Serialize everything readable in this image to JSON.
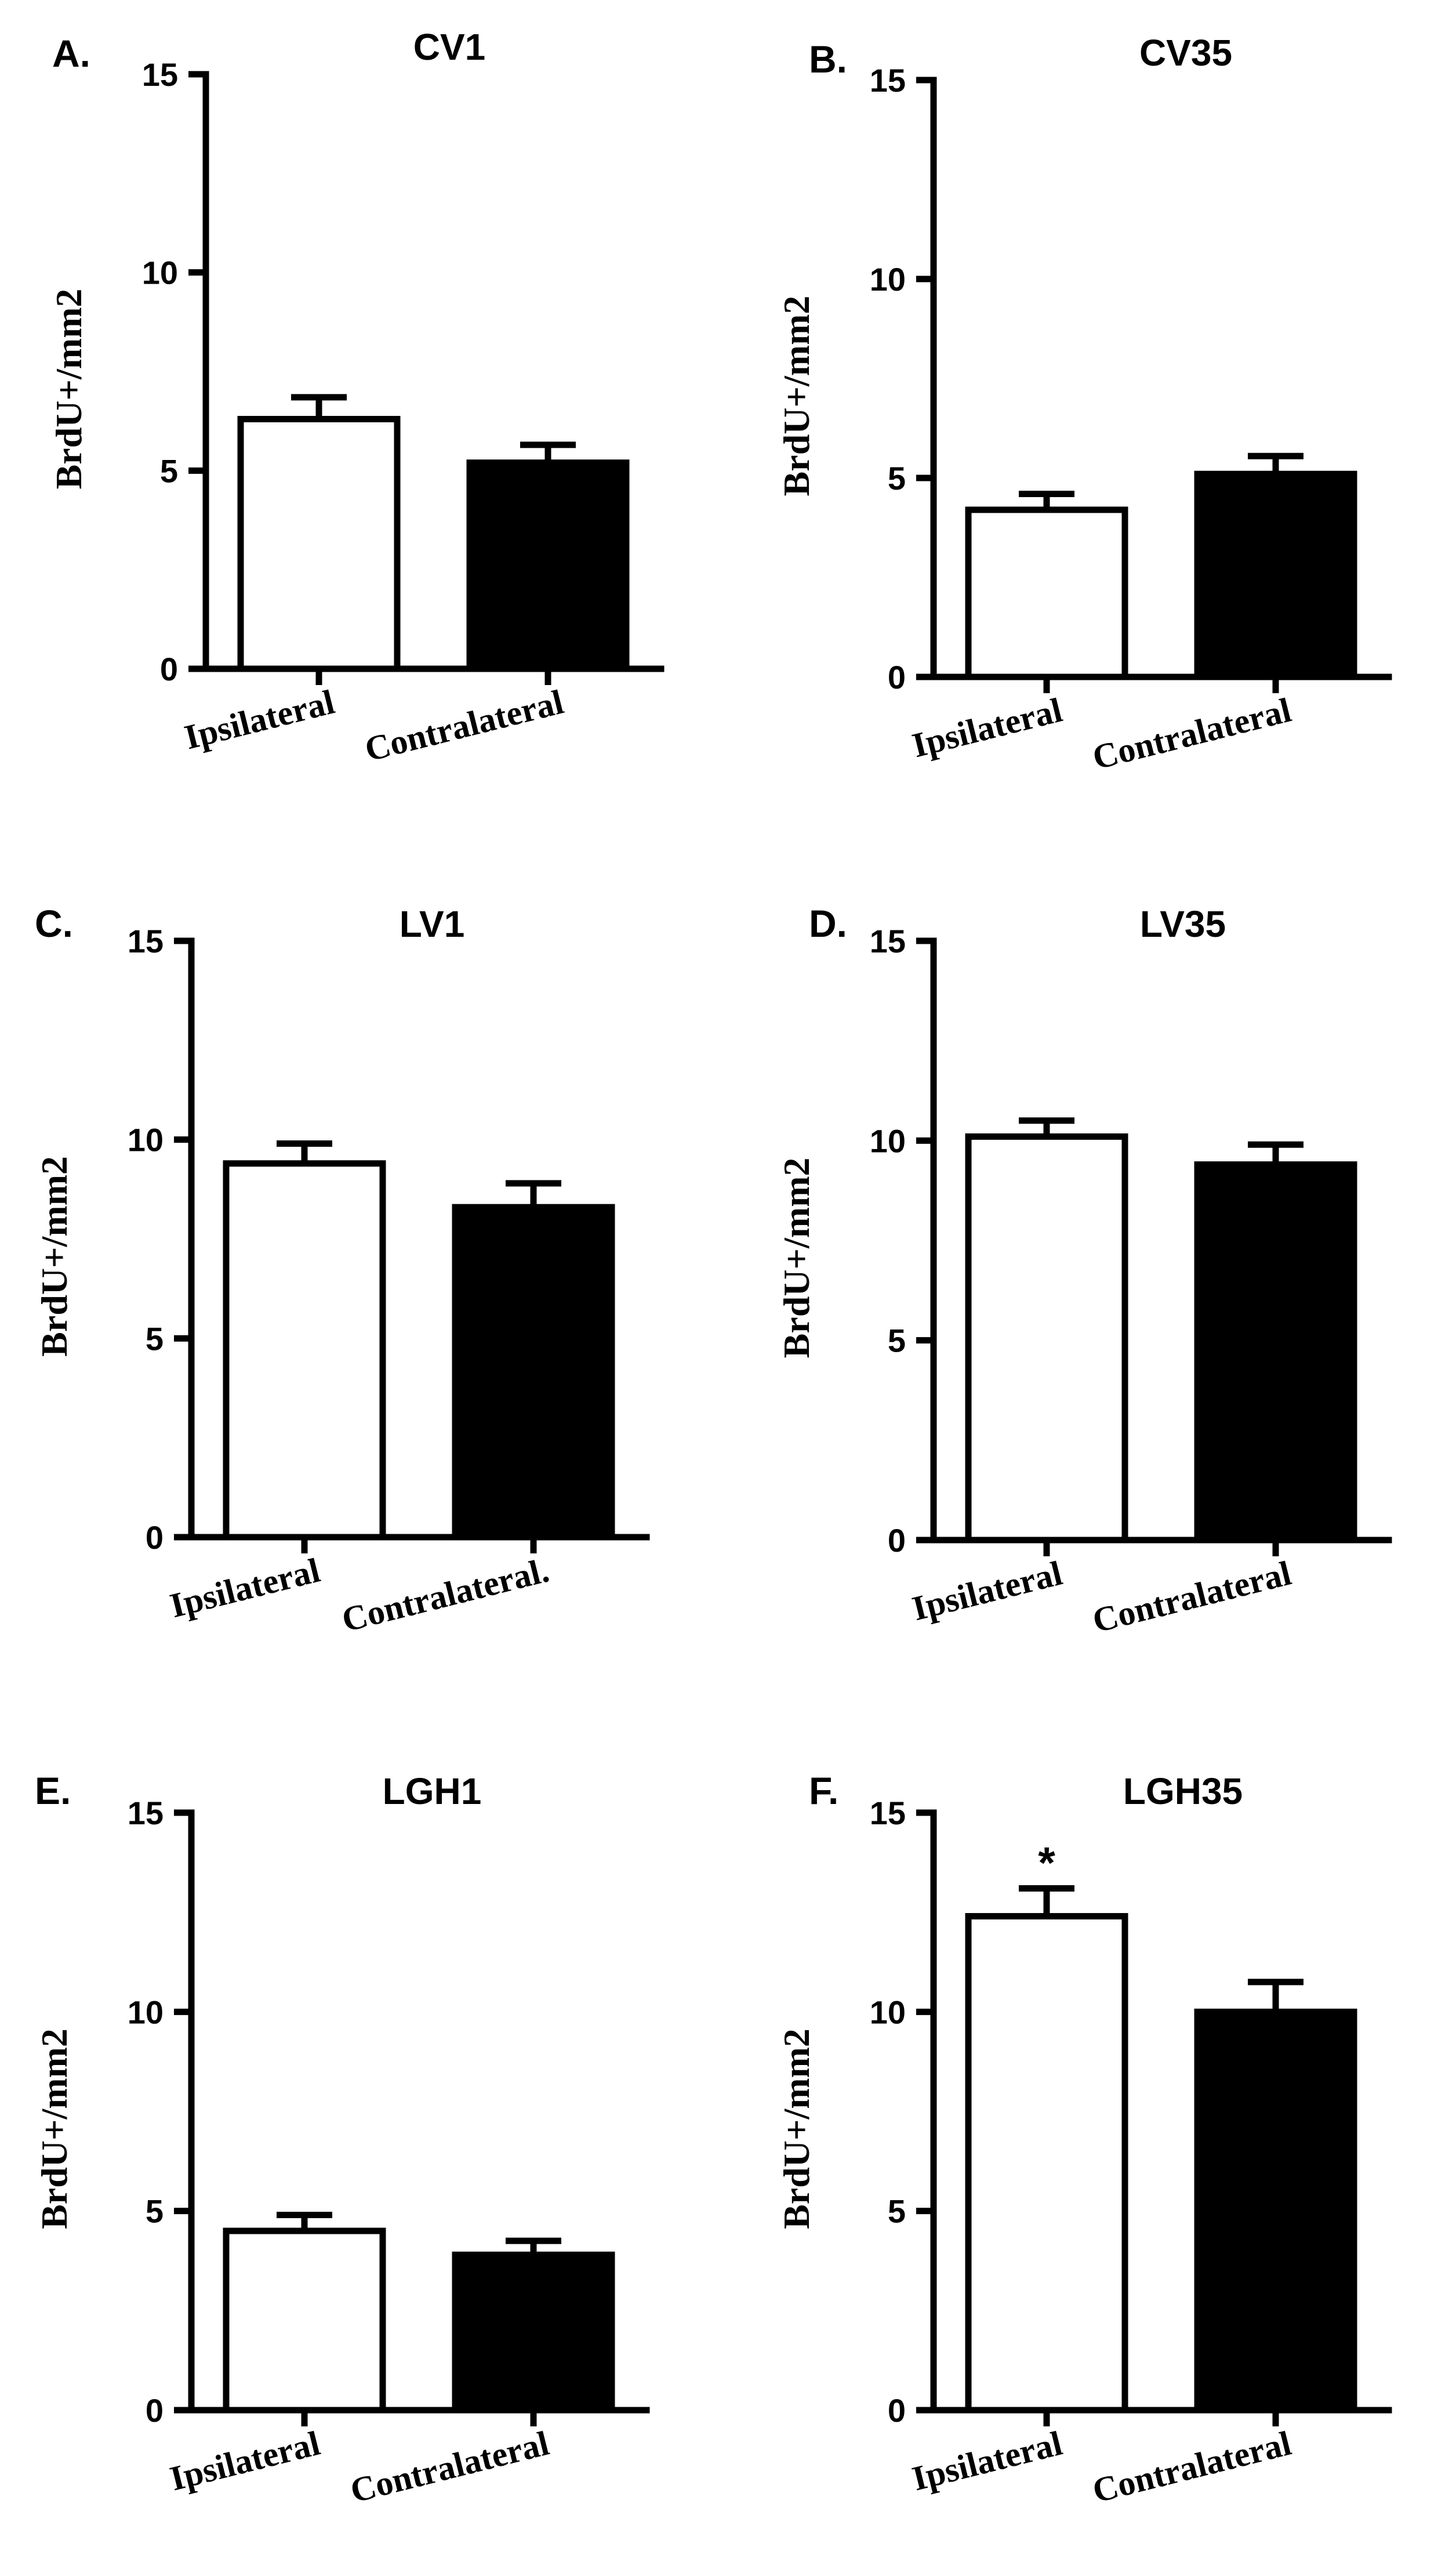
{
  "chart_data": [
    {
      "type": "bar",
      "panel": "A.",
      "title": "CV1",
      "ylabel": "BrdU+/mm2",
      "xlabel": "",
      "categories": [
        "Ipsilateral",
        "Contralateral"
      ],
      "values": [
        6.3,
        5.2
      ],
      "errors": [
        0.55,
        0.45
      ],
      "bar_colors": [
        "#ffffff",
        "#000000"
      ],
      "ylim": [
        0,
        15
      ],
      "yticks": [
        "0",
        "5",
        "10",
        "15"
      ],
      "annotations": []
    },
    {
      "type": "bar",
      "panel": "B.",
      "title": "CV35",
      "ylabel": "BrdU+/mm2",
      "xlabel": "",
      "categories": [
        "Ipsilateral",
        "Contralateral"
      ],
      "values": [
        4.2,
        5.1
      ],
      "errors": [
        0.4,
        0.45
      ],
      "bar_colors": [
        "#ffffff",
        "#000000"
      ],
      "ylim": [
        0,
        15
      ],
      "yticks": [
        "0",
        "5",
        "10",
        "15"
      ],
      "annotations": []
    },
    {
      "type": "bar",
      "panel": "C.",
      "title": "LV1",
      "ylabel": "BrdU+/mm2",
      "xlabel": "",
      "categories": [
        "Ipsilateral",
        "Contralateral."
      ],
      "values": [
        9.4,
        8.3
      ],
      "errors": [
        0.5,
        0.6
      ],
      "bar_colors": [
        "#ffffff",
        "#000000"
      ],
      "ylim": [
        0,
        15
      ],
      "yticks": [
        "0",
        "5",
        "10",
        "15"
      ],
      "annotations": []
    },
    {
      "type": "bar",
      "panel": "D.",
      "title": "LV35",
      "ylabel": "BrdU+/mm2",
      "xlabel": "",
      "categories": [
        "Ipsilateral",
        "Contralateral"
      ],
      "values": [
        10.1,
        9.4
      ],
      "errors": [
        0.4,
        0.5
      ],
      "bar_colors": [
        "#ffffff",
        "#000000"
      ],
      "ylim": [
        0,
        15
      ],
      "yticks": [
        "0",
        "5",
        "10",
        "15"
      ],
      "annotations": []
    },
    {
      "type": "bar",
      "panel": "E.",
      "title": "LGH1",
      "ylabel": "BrdU+/mm2",
      "xlabel": "",
      "categories": [
        "Ipsilateral",
        "Contralateral"
      ],
      "values": [
        4.5,
        3.9
      ],
      "errors": [
        0.4,
        0.35
      ],
      "bar_colors": [
        "#ffffff",
        "#000000"
      ],
      "ylim": [
        0,
        15
      ],
      "yticks": [
        "0",
        "5",
        "10",
        "15"
      ],
      "annotations": []
    },
    {
      "type": "bar",
      "panel": "F.",
      "title": "LGH35",
      "ylabel": "BrdU+/mm2",
      "xlabel": "",
      "categories": [
        "Ipsilateral",
        "Contralateral"
      ],
      "values": [
        12.4,
        10.0
      ],
      "errors": [
        0.7,
        0.75
      ],
      "bar_colors": [
        "#ffffff",
        "#000000"
      ],
      "ylim": [
        0,
        15
      ],
      "yticks": [
        "0",
        "5",
        "10",
        "15"
      ],
      "annotations": [
        {
          "bar_index": 0,
          "text": "*"
        }
      ]
    }
  ]
}
